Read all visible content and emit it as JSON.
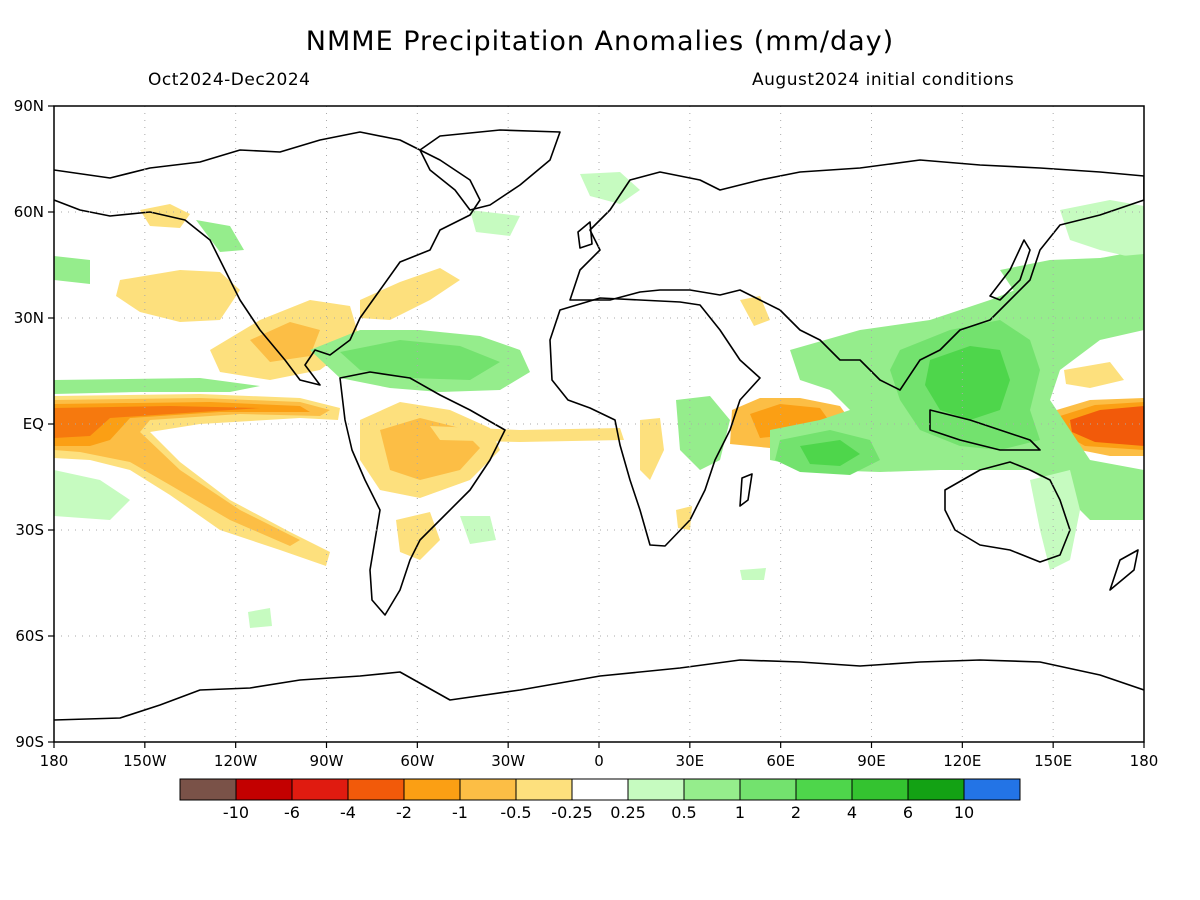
{
  "title": "NMME Precipitation Anomalies (mm/day)",
  "period": "Oct2024-Dec2024",
  "initial_conditions": "August2024 initial conditions",
  "lat_ticks": [
    "90N",
    "60N",
    "30N",
    "EQ",
    "30S",
    "60S",
    "90S"
  ],
  "lon_ticks": [
    "180",
    "150W",
    "120W",
    "90W",
    "60W",
    "30W",
    "0",
    "30E",
    "60E",
    "90E",
    "120E",
    "150E",
    "180"
  ],
  "colorbar": {
    "colors": [
      "#7a5248",
      "#c30000",
      "#e01b10",
      "#f25a0a",
      "#fb9f14",
      "#fcbe45",
      "#fde07d",
      "#ffffff",
      "#c6fbc0",
      "#95ed8c",
      "#73e26e",
      "#4ed64b",
      "#34c330",
      "#13a214",
      "#2374e6"
    ],
    "labels": [
      "-10",
      "-6",
      "-4",
      "-2",
      "-1",
      "-0.5",
      "-0.25",
      "0.25",
      "0.5",
      "1",
      "2",
      "4",
      "6",
      "10"
    ]
  },
  "chart_data": {
    "type": "map",
    "variable": "Precipitation Anomalies",
    "units": "mm/day",
    "period": "Oct2024-Dec2024",
    "initial_conditions": "August2024 initial conditions",
    "lon_range": [
      -180,
      180
    ],
    "lat_range": [
      -90,
      90
    ],
    "features": [
      {
        "region": "Equatorial central/eastern Pacific",
        "lon": [
          -180,
          -100
        ],
        "lat": [
          -10,
          5
        ],
        "anomaly": "-2 to -4"
      },
      {
        "region": "Western equatorial Pacific",
        "lon": [
          155,
          180
        ],
        "lat": [
          -5,
          5
        ],
        "anomaly": "-2 to -4"
      },
      {
        "region": "Western Indian Ocean",
        "lon": [
          45,
          75
        ],
        "lat": [
          -10,
          5
        ],
        "anomaly": "-1 to -2"
      },
      {
        "region": "Maritime Continent",
        "lon": [
          95,
          150
        ],
        "lat": [
          -15,
          20
        ],
        "anomaly": "+1 to +2"
      },
      {
        "region": "Central Indian Ocean",
        "lon": [
          65,
          95
        ],
        "lat": [
          -15,
          -5
        ],
        "anomaly": "+1 to +2"
      },
      {
        "region": "Caribbean / tropical Atlantic",
        "lon": [
          -85,
          -30
        ],
        "lat": [
          5,
          25
        ],
        "anomaly": "+0.5 to +1"
      },
      {
        "region": "Amazon basin",
        "lon": [
          -75,
          -40
        ],
        "lat": [
          -20,
          0
        ],
        "anomaly": "-0.5 to -1"
      },
      {
        "region": "South Pacific Convergence Zone",
        "lon": [
          -150,
          -95
        ],
        "lat": [
          -35,
          -5
        ],
        "anomaly": "-0.5 to -1"
      }
    ]
  }
}
